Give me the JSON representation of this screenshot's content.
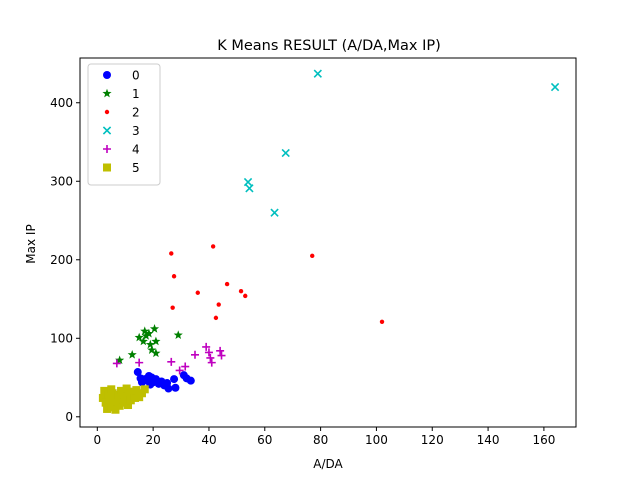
{
  "chart_data": {
    "type": "scatter",
    "title": "K Means RESULT (A/DA,Max IP)",
    "xlabel": "A/DA",
    "ylabel": "Max IP",
    "xlim": [
      -6.2,
      171.5
    ],
    "ylim": [
      -13,
      457
    ],
    "xticks": [
      0,
      20,
      40,
      60,
      80,
      100,
      120,
      140,
      160
    ],
    "yticks": [
      0,
      100,
      200,
      300,
      400
    ],
    "grid": false,
    "legend_position": "top-left",
    "series": [
      {
        "name": "0",
        "color": "#0000ff",
        "marker": "circle",
        "points": [
          [
            14.5,
            57
          ],
          [
            15.5,
            49
          ],
          [
            16,
            44
          ],
          [
            17,
            48
          ],
          [
            18,
            46
          ],
          [
            18.5,
            52
          ],
          [
            19,
            41
          ],
          [
            19.5,
            50
          ],
          [
            20,
            44
          ],
          [
            20.5,
            46
          ],
          [
            21,
            48
          ],
          [
            22,
            42
          ],
          [
            23,
            45
          ],
          [
            24,
            40
          ],
          [
            25,
            43
          ],
          [
            25.5,
            36
          ],
          [
            27.5,
            48
          ],
          [
            28,
            37
          ],
          [
            31,
            53
          ],
          [
            32,
            49
          ],
          [
            33.5,
            46
          ]
        ]
      },
      {
        "name": "1",
        "color": "#008000",
        "marker": "star",
        "points": [
          [
            8,
            72
          ],
          [
            12.5,
            79
          ],
          [
            15,
            101
          ],
          [
            16.5,
            96
          ],
          [
            17,
            109
          ],
          [
            17.5,
            103
          ],
          [
            18.5,
            106
          ],
          [
            19,
            92
          ],
          [
            19.5,
            85
          ],
          [
            20.5,
            112
          ],
          [
            21,
            96
          ],
          [
            21,
            81
          ],
          [
            29,
            104
          ]
        ]
      },
      {
        "name": "2",
        "color": "#ff0000",
        "marker": "dot",
        "points": [
          [
            26.5,
            208
          ],
          [
            27,
            139
          ],
          [
            27.5,
            179
          ],
          [
            36,
            158
          ],
          [
            41.5,
            217
          ],
          [
            42.5,
            126
          ],
          [
            43.5,
            143
          ],
          [
            46.5,
            169
          ],
          [
            51.5,
            160
          ],
          [
            53,
            154
          ],
          [
            77,
            205
          ],
          [
            102,
            121
          ]
        ]
      },
      {
        "name": "3",
        "color": "#00bfbf",
        "marker": "x",
        "points": [
          [
            54,
            299
          ],
          [
            54.5,
            291
          ],
          [
            63.5,
            260
          ],
          [
            67.5,
            336
          ],
          [
            79,
            437
          ],
          [
            164,
            420
          ]
        ]
      },
      {
        "name": "4",
        "color": "#bf00bf",
        "marker": "plus",
        "points": [
          [
            7,
            68
          ],
          [
            15,
            69
          ],
          [
            26.5,
            70
          ],
          [
            29.5,
            59
          ],
          [
            31.5,
            64
          ],
          [
            35,
            79
          ],
          [
            39,
            89
          ],
          [
            40,
            82
          ],
          [
            40.5,
            75
          ],
          [
            41,
            69
          ],
          [
            44,
            84
          ],
          [
            44.5,
            78
          ]
        ]
      },
      {
        "name": "5",
        "color": "#bfbf00",
        "marker": "square",
        "points": [
          [
            2,
            24
          ],
          [
            2.5,
            33
          ],
          [
            3,
            18
          ],
          [
            3.5,
            10
          ],
          [
            4,
            28
          ],
          [
            4.5,
            22
          ],
          [
            5,
            12
          ],
          [
            5,
            35
          ],
          [
            5.5,
            30
          ],
          [
            6,
            16
          ],
          [
            6,
            24
          ],
          [
            6.5,
            9
          ],
          [
            7,
            20
          ],
          [
            7.5,
            28
          ],
          [
            8,
            14
          ],
          [
            8.5,
            33
          ],
          [
            9,
            22
          ],
          [
            9.5,
            18
          ],
          [
            10,
            26
          ],
          [
            10.5,
            36
          ],
          [
            11,
            15
          ],
          [
            11.5,
            30
          ],
          [
            12,
            21
          ],
          [
            12.5,
            27
          ],
          [
            13,
            32
          ],
          [
            13.5,
            24
          ],
          [
            14,
            34
          ],
          [
            15,
            25
          ],
          [
            16,
            30
          ],
          [
            17,
            35
          ]
        ]
      }
    ]
  }
}
